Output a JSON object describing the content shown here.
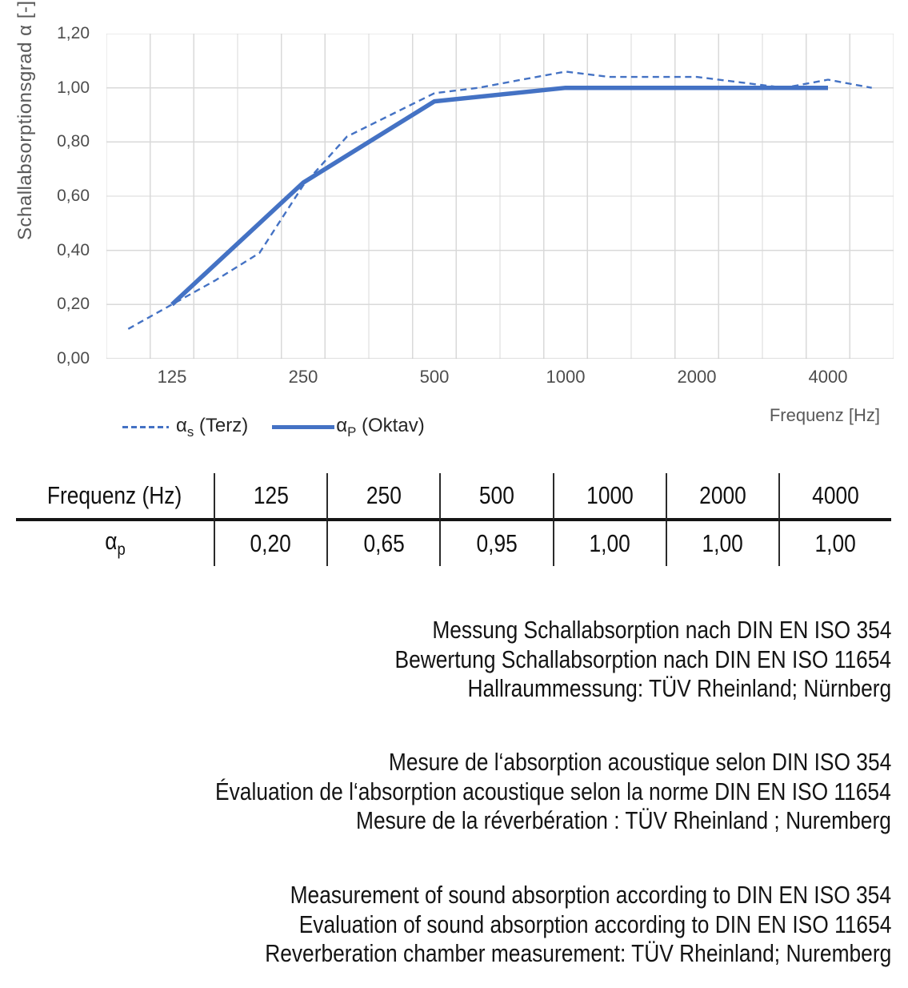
{
  "chart_data": {
    "type": "line",
    "title": "",
    "xlabel": "Frequenz [Hz]",
    "ylabel": "Schallabsorptionsgrad α [-]",
    "x_scale": "logarithmic (third-octave band categories)",
    "ylim": [
      0,
      1.2
    ],
    "grid": true,
    "legend_position": "bottom-left",
    "line_color": "#4472C4",
    "grid_color": "#D9D9D9",
    "axis_line_color": "#BFBFBF",
    "categories": [
      100,
      125,
      160,
      200,
      250,
      315,
      400,
      500,
      630,
      800,
      1000,
      1250,
      1600,
      2000,
      2500,
      3150,
      4000,
      5000
    ],
    "y_ticks": [
      "0,00",
      "0,20",
      "0,40",
      "0,60",
      "0,80",
      "1,00",
      "1,20"
    ],
    "x_ticks": [
      125,
      250,
      500,
      1000,
      2000,
      4000
    ],
    "series": [
      {
        "name": "αs (Terz)",
        "style": "dashed",
        "x": [
          100,
          125,
          160,
          200,
          250,
          315,
          400,
          500,
          630,
          800,
          1000,
          1250,
          1600,
          2000,
          2500,
          3150,
          4000,
          5000
        ],
        "values": [
          0.11,
          0.2,
          0.29,
          0.39,
          0.64,
          0.82,
          0.9,
          0.98,
          1.0,
          1.03,
          1.06,
          1.04,
          1.04,
          1.04,
          1.02,
          1.0,
          1.03,
          1.0
        ]
      },
      {
        "name": "αP (Oktav)",
        "style": "solid",
        "x": [
          125,
          250,
          500,
          1000,
          2000,
          4000
        ],
        "values": [
          0.2,
          0.65,
          0.95,
          1.0,
          1.0,
          1.0
        ]
      }
    ]
  },
  "legend": {
    "terz": {
      "base": "α",
      "sub": "s",
      "rest": " (Terz)"
    },
    "oktav": {
      "base": "α",
      "sub": "P",
      "rest": " (Oktav)"
    }
  },
  "table": {
    "header_label": "Frequenz (Hz)",
    "frequencies": [
      "125",
      "250",
      "500",
      "1000",
      "2000",
      "4000"
    ],
    "row_label": {
      "base": "α",
      "sub": "p"
    },
    "values": [
      "0,20",
      "0,65",
      "0,95",
      "1,00",
      "1,00",
      "1,00"
    ]
  },
  "notes": {
    "german": [
      "Messung Schallabsorption nach DIN EN ISO 354",
      "Bewertung Schallabsorption nach DIN EN ISO 11654",
      "Hallraummessung: TÜV Rheinland; Nürnberg"
    ],
    "french": [
      "Mesure de l‘absorption acoustique selon DIN ISO 354",
      "Évaluation de l‘absorption acoustique selon la norme DIN EN ISO 11654",
      "Mesure de la réverbération : TÜV Rheinland ; Nuremberg"
    ],
    "english": [
      "Measurement of sound absorption according to DIN EN ISO 354",
      "Evaluation of sound absorption according to DIN EN ISO 11654",
      "Reverberation chamber measurement: TÜV Rheinland; Nuremberg"
    ]
  }
}
